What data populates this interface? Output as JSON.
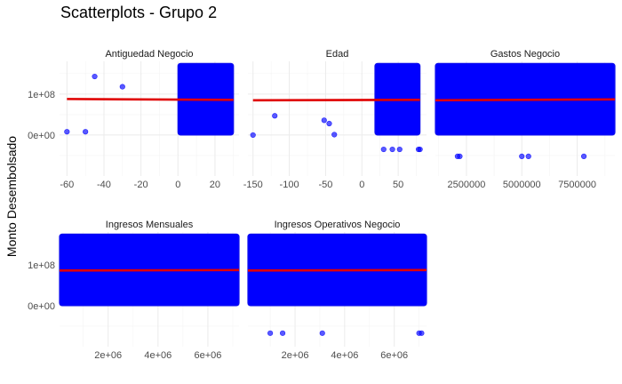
{
  "title": "Scatterplots - Grupo 2",
  "ylabel": "Monto Desembolsado",
  "colors": {
    "points": "#0000FF",
    "fit_line": "#E00000",
    "grid": "#EBEBEB"
  },
  "chart_data": [
    {
      "type": "scatter",
      "title": "Antiguedad Negocio",
      "xlim": [
        -64,
        33
      ],
      "ylim": [
        -100000000,
        180000000
      ],
      "x_ticks": [
        -60,
        -40,
        -20,
        0,
        20
      ],
      "x_tick_labels": [
        "-60",
        "-40",
        "-20",
        "0",
        "20"
      ],
      "y_ticks": [
        0,
        100000000
      ],
      "y_tick_labels": [
        "0e+00",
        "1e+08"
      ],
      "dense_region": {
        "x": [
          0,
          30
        ],
        "y": [
          0,
          175000000
        ]
      },
      "points": [
        {
          "x": -60,
          "y": 8000000
        },
        {
          "x": -50,
          "y": 8000000
        },
        {
          "x": -45,
          "y": 143000000
        },
        {
          "x": -30,
          "y": 118000000
        }
      ],
      "fit_line": [
        {
          "x": -60,
          "y": 88000000
        },
        {
          "x": 30,
          "y": 86000000
        }
      ]
    },
    {
      "type": "scatter",
      "title": "Edad",
      "xlim": [
        -157,
        89
      ],
      "ylim": [
        -100000000,
        180000000
      ],
      "x_ticks": [
        -150,
        -100,
        -50,
        0,
        50
      ],
      "x_tick_labels": [
        "-150",
        "-100",
        "-50",
        "0",
        "50"
      ],
      "y_ticks": [
        0,
        100000000
      ],
      "y_tick_labels": [
        "0e+00",
        "1e+08"
      ],
      "dense_region": {
        "x": [
          18,
          80
        ],
        "y": [
          0,
          175000000
        ]
      },
      "points": [
        {
          "x": -150,
          "y": 0
        },
        {
          "x": -120,
          "y": 47000000
        },
        {
          "x": -52,
          "y": 36000000
        },
        {
          "x": -45,
          "y": 28000000
        },
        {
          "x": -38,
          "y": 1000000
        },
        {
          "x": 30,
          "y": -35000000
        },
        {
          "x": 42,
          "y": -35000000
        },
        {
          "x": 52,
          "y": -35000000
        },
        {
          "x": 78,
          "y": -35000000
        },
        {
          "x": 80,
          "y": -35000000
        }
      ],
      "fit_line": [
        {
          "x": -150,
          "y": 85000000
        },
        {
          "x": 80,
          "y": 86000000
        }
      ]
    },
    {
      "type": "scatter",
      "title": "Gastos Negocio",
      "xlim": [
        1100000,
        9200000
      ],
      "ylim": [
        -100000000,
        180000000
      ],
      "x_ticks": [
        2500000,
        5000000,
        7500000
      ],
      "x_tick_labels": [
        "2500000",
        "5000000",
        "7500000"
      ],
      "y_ticks": [
        0,
        100000000
      ],
      "y_tick_labels": [
        "0e+00",
        "1e+08"
      ],
      "dense_region": {
        "x": [
          1100000,
          9200000
        ],
        "y": [
          0,
          175000000
        ]
      },
      "points": [
        {
          "x": 2100000,
          "y": -52000000
        },
        {
          "x": 2200000,
          "y": -52000000
        },
        {
          "x": 5000000,
          "y": -52000000
        },
        {
          "x": 5300000,
          "y": -52000000
        },
        {
          "x": 7800000,
          "y": -52000000
        }
      ],
      "fit_line": [
        {
          "x": 1100000,
          "y": 85000000
        },
        {
          "x": 9200000,
          "y": 87000000
        }
      ]
    },
    {
      "type": "scatter",
      "title": "Ingresos Mensuales",
      "xlim": [
        50000,
        7250000
      ],
      "ylim": [
        -100000000,
        180000000
      ],
      "x_ticks": [
        2000000,
        4000000,
        6000000
      ],
      "x_tick_labels": [
        "2e+06",
        "4e+06",
        "6e+06"
      ],
      "y_ticks": [
        0,
        100000000
      ],
      "y_tick_labels": [
        "0e+00",
        "1e+08"
      ],
      "dense_region": {
        "x": [
          50000,
          7250000
        ],
        "y": [
          0,
          175000000
        ]
      },
      "points": [],
      "fit_line": [
        {
          "x": 50000,
          "y": 86000000
        },
        {
          "x": 7250000,
          "y": 87000000
        }
      ]
    },
    {
      "type": "scatter",
      "title": "Ingresos Operativos Negocio",
      "xlim": [
        100000,
        7300000
      ],
      "ylim": [
        -100000000,
        180000000
      ],
      "x_ticks": [
        2000000,
        4000000,
        6000000
      ],
      "x_tick_labels": [
        "2e+06",
        "4e+06",
        "6e+06"
      ],
      "y_ticks": [
        0,
        100000000
      ],
      "y_tick_labels": [
        "0e+00",
        "1e+08"
      ],
      "dense_region": {
        "x": [
          100000,
          7300000
        ],
        "y": [
          0,
          175000000
        ]
      },
      "points": [
        {
          "x": 1000000,
          "y": -67000000
        },
        {
          "x": 1500000,
          "y": -67000000
        },
        {
          "x": 3100000,
          "y": -67000000
        },
        {
          "x": 7000000,
          "y": -67000000
        },
        {
          "x": 7100000,
          "y": -67000000
        }
      ],
      "fit_line": [
        {
          "x": 100000,
          "y": 86000000
        },
        {
          "x": 7300000,
          "y": 87000000
        }
      ]
    }
  ]
}
